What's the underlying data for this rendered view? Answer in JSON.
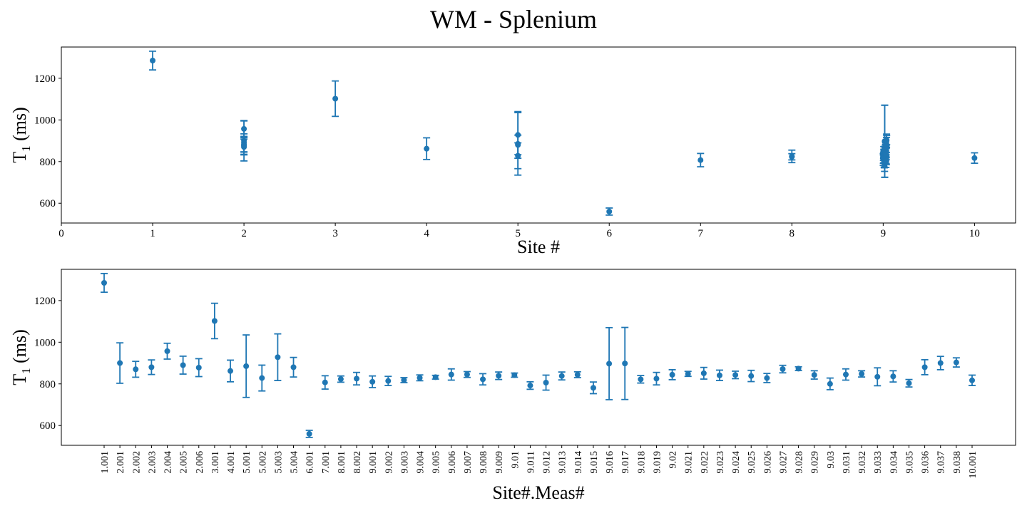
{
  "title": "WM - Splenium",
  "colors": {
    "series": "#1f77b4",
    "axes": "#000000",
    "background": "#ffffff"
  },
  "chart_data": [
    {
      "type": "scatter",
      "error_bars": true,
      "xlabel": "Site #",
      "ylabel_main": "T",
      "ylabel_sub": "1",
      "ylabel_unit": " (ms)",
      "xlim": [
        0,
        10.45
      ],
      "ylim": [
        505,
        1350
      ],
      "xticks": [
        0,
        1,
        2,
        3,
        4,
        5,
        6,
        7,
        8,
        9,
        10
      ],
      "xtick_labels": [
        "0",
        "1",
        "2",
        "3",
        "4",
        "5",
        "6",
        "7",
        "8",
        "9",
        "10"
      ],
      "yticks": [
        600,
        800,
        1000,
        1200
      ],
      "ytick_labels": [
        "600",
        "800",
        "1000",
        "1200"
      ],
      "grid": false,
      "points": [
        {
          "x": 1,
          "y": 1285,
          "err": 45
        },
        {
          "x": 2,
          "y": 900,
          "err": 97
        },
        {
          "x": 2,
          "y": 870,
          "err": 38
        },
        {
          "x": 2,
          "y": 880,
          "err": 35
        },
        {
          "x": 2,
          "y": 957,
          "err": 38
        },
        {
          "x": 2,
          "y": 890,
          "err": 43
        },
        {
          "x": 2,
          "y": 878,
          "err": 43
        },
        {
          "x": 3,
          "y": 1102,
          "err": 85
        },
        {
          "x": 4,
          "y": 862,
          "err": 52
        },
        {
          "x": 5,
          "y": 885,
          "err": 150
        },
        {
          "x": 5,
          "y": 828,
          "err": 62
        },
        {
          "x": 5,
          "y": 928,
          "err": 112
        },
        {
          "x": 5,
          "y": 880,
          "err": 47
        },
        {
          "x": 6,
          "y": 560,
          "err": 17
        },
        {
          "x": 7,
          "y": 807,
          "err": 32
        },
        {
          "x": 8,
          "y": 823,
          "err": 15
        },
        {
          "x": 8,
          "y": 825,
          "err": 30
        },
        {
          "x": 9.001,
          "y": 810,
          "err": 28
        },
        {
          "x": 9.002,
          "y": 814,
          "err": 22
        },
        {
          "x": 9.003,
          "y": 818,
          "err": 12
        },
        {
          "x": 9.004,
          "y": 829,
          "err": 14
        },
        {
          "x": 9.005,
          "y": 832,
          "err": 9
        },
        {
          "x": 9.006,
          "y": 845,
          "err": 27
        },
        {
          "x": 9.007,
          "y": 845,
          "err": 14
        },
        {
          "x": 9.008,
          "y": 822,
          "err": 27
        },
        {
          "x": 9.009,
          "y": 839,
          "err": 18
        },
        {
          "x": 9.01,
          "y": 842,
          "err": 10
        },
        {
          "x": 9.011,
          "y": 792,
          "err": 18
        },
        {
          "x": 9.012,
          "y": 806,
          "err": 36
        },
        {
          "x": 9.013,
          "y": 838,
          "err": 19
        },
        {
          "x": 9.014,
          "y": 844,
          "err": 14
        },
        {
          "x": 9.015,
          "y": 781,
          "err": 28
        },
        {
          "x": 9.016,
          "y": 897,
          "err": 173
        },
        {
          "x": 9.017,
          "y": 898,
          "err": 173
        },
        {
          "x": 9.018,
          "y": 822,
          "err": 18
        },
        {
          "x": 9.019,
          "y": 825,
          "err": 30
        },
        {
          "x": 9.02,
          "y": 844,
          "err": 24
        },
        {
          "x": 9.021,
          "y": 848,
          "err": 12
        },
        {
          "x": 9.022,
          "y": 851,
          "err": 28
        },
        {
          "x": 9.023,
          "y": 841,
          "err": 25
        },
        {
          "x": 9.024,
          "y": 843,
          "err": 18
        },
        {
          "x": 9.025,
          "y": 838,
          "err": 27
        },
        {
          "x": 9.026,
          "y": 828,
          "err": 22
        },
        {
          "x": 9.027,
          "y": 871,
          "err": 18
        },
        {
          "x": 9.028,
          "y": 873,
          "err": 9
        },
        {
          "x": 9.029,
          "y": 843,
          "err": 20
        },
        {
          "x": 9.03,
          "y": 800,
          "err": 28
        },
        {
          "x": 9.031,
          "y": 845,
          "err": 27
        },
        {
          "x": 9.032,
          "y": 848,
          "err": 15
        },
        {
          "x": 9.033,
          "y": 834,
          "err": 43
        },
        {
          "x": 9.034,
          "y": 836,
          "err": 27
        },
        {
          "x": 9.035,
          "y": 803,
          "err": 18
        },
        {
          "x": 9.036,
          "y": 880,
          "err": 36
        },
        {
          "x": 9.037,
          "y": 900,
          "err": 32
        },
        {
          "x": 9.038,
          "y": 903,
          "err": 22
        },
        {
          "x": 10,
          "y": 817,
          "err": 25
        }
      ]
    },
    {
      "type": "scatter",
      "error_bars": true,
      "xlabel": "Site#.Meas#",
      "ylabel_main": "T",
      "ylabel_sub": "1",
      "ylabel_unit": " (ms)",
      "ylim": [
        505,
        1350
      ],
      "yticks": [
        600,
        800,
        1000,
        1200
      ],
      "ytick_labels": [
        "600",
        "800",
        "1000",
        "1200"
      ],
      "grid": false,
      "categories": [
        "1.001",
        "2.001",
        "2.002",
        "2.003",
        "2.004",
        "2.005",
        "2.006",
        "3.001",
        "4.001",
        "5.001",
        "5.002",
        "5.003",
        "5.004",
        "6.001",
        "7.001",
        "8.001",
        "8.002",
        "9.001",
        "9.002",
        "9.003",
        "9.004",
        "9.005",
        "9.006",
        "9.007",
        "9.008",
        "9.009",
        "9.01",
        "9.011",
        "9.012",
        "9.013",
        "9.014",
        "9.015",
        "9.016",
        "9.017",
        "9.018",
        "9.019",
        "9.02",
        "9.021",
        "9.022",
        "9.023",
        "9.024",
        "9.025",
        "9.026",
        "9.027",
        "9.028",
        "9.029",
        "9.03",
        "9.031",
        "9.032",
        "9.033",
        "9.034",
        "9.035",
        "9.036",
        "9.037",
        "9.038",
        "10.001"
      ],
      "values": [
        1285,
        900,
        870,
        880,
        957,
        890,
        878,
        1102,
        862,
        885,
        828,
        928,
        880,
        560,
        807,
        823,
        825,
        810,
        814,
        818,
        829,
        832,
        845,
        845,
        822,
        839,
        842,
        792,
        806,
        838,
        844,
        781,
        897,
        898,
        822,
        825,
        844,
        848,
        851,
        841,
        843,
        838,
        828,
        871,
        873,
        843,
        800,
        845,
        848,
        834,
        836,
        803,
        880,
        900,
        903,
        817
      ],
      "errors": [
        45,
        97,
        38,
        35,
        38,
        43,
        43,
        85,
        52,
        150,
        62,
        112,
        47,
        17,
        32,
        15,
        30,
        28,
        22,
        12,
        14,
        9,
        27,
        14,
        27,
        18,
        10,
        18,
        36,
        19,
        14,
        28,
        173,
        173,
        18,
        30,
        24,
        12,
        28,
        25,
        18,
        27,
        22,
        18,
        9,
        20,
        28,
        27,
        15,
        43,
        27,
        18,
        36,
        32,
        22,
        25
      ]
    }
  ]
}
